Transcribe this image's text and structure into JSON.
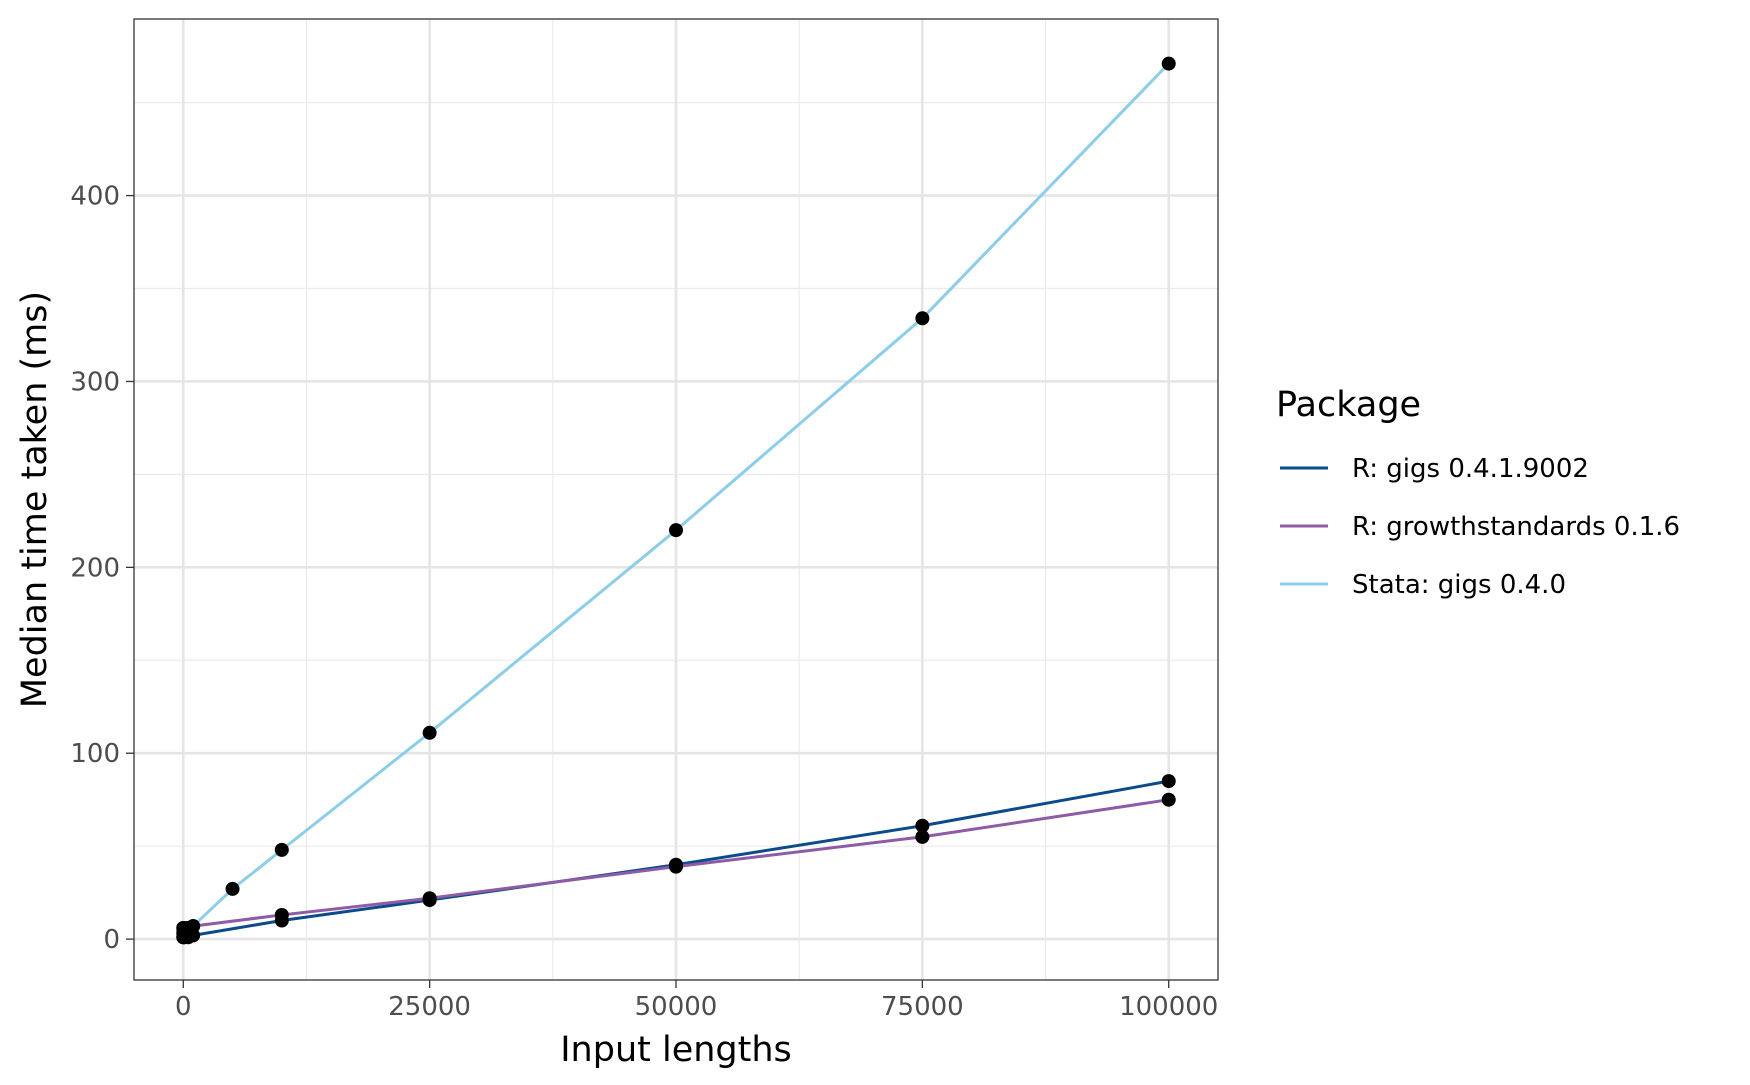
{
  "chart_data": {
    "type": "line",
    "title": "",
    "xlabel": "Input lengths",
    "ylabel": "Median time taken (ms)",
    "xlim": [
      -5000,
      105000
    ],
    "ylim": [
      -22,
      495
    ],
    "x_ticks": [
      0,
      25000,
      50000,
      75000,
      100000
    ],
    "x_tick_labels": [
      "0",
      "25000",
      "50000",
      "75000",
      "100000"
    ],
    "y_ticks": [
      0,
      100,
      200,
      300,
      400
    ],
    "y_tick_labels": [
      "0",
      "100",
      "200",
      "300",
      "400"
    ],
    "grid": true,
    "legend": {
      "title": "Package",
      "position": "right"
    },
    "series": [
      {
        "name": "R: gigs 0.4.1.9002",
        "color": "#0b4a8b",
        "x": [
          1,
          10,
          100,
          500,
          1000,
          10000,
          25000,
          50000,
          75000,
          100000
        ],
        "y": [
          1,
          1,
          1,
          1,
          2,
          10,
          21,
          40,
          61,
          85
        ]
      },
      {
        "name": "R: growthstandards 0.1.6",
        "color": "#8e5ba6",
        "x": [
          1,
          10,
          100,
          500,
          1000,
          10000,
          25000,
          50000,
          75000,
          100000
        ],
        "y": [
          6,
          6,
          6,
          6,
          7,
          13,
          22,
          39,
          55,
          75
        ]
      },
      {
        "name": "Stata: gigs 0.4.0",
        "color": "#8ccde9",
        "x": [
          1,
          10,
          100,
          500,
          1000,
          5000,
          10000,
          25000,
          50000,
          75000,
          100000
        ],
        "y": [
          3,
          4,
          5,
          6,
          7,
          27,
          48,
          111,
          220,
          334,
          471
        ]
      }
    ]
  }
}
